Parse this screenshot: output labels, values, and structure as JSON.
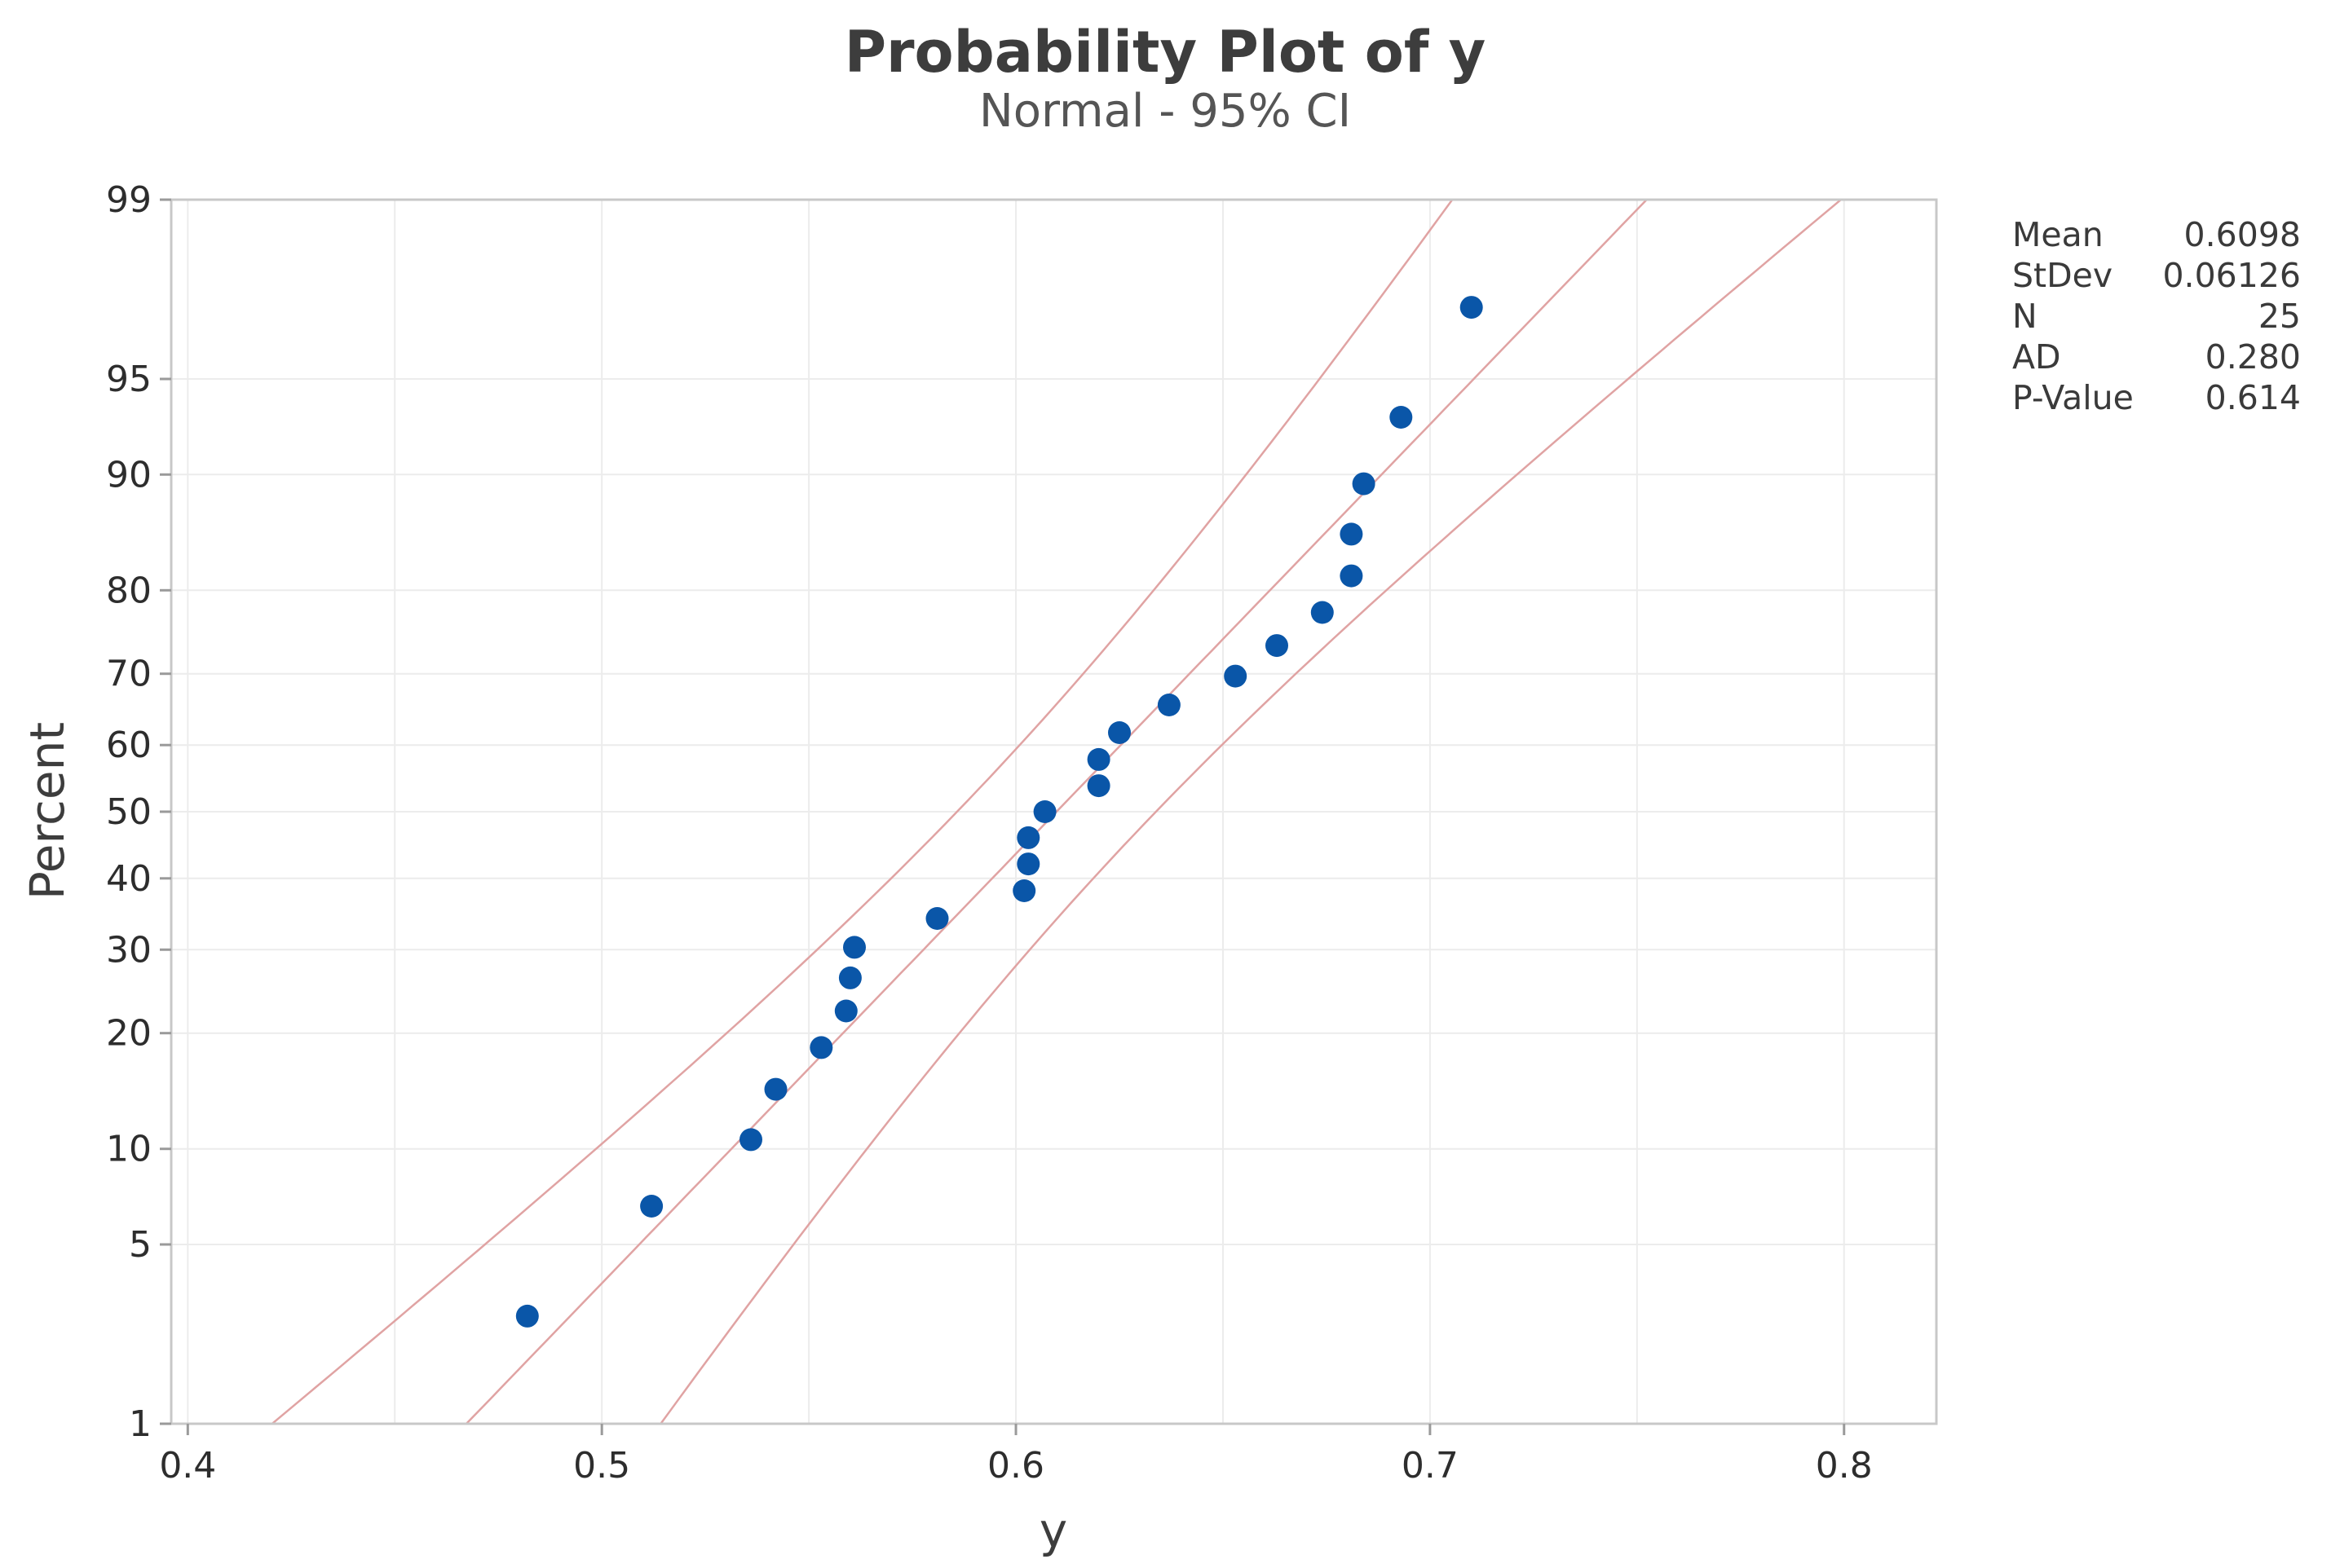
{
  "chart_data": {
    "type": "scatter",
    "title": "Probability Plot of y",
    "subtitle": "Normal - 95% CI",
    "xlabel": "y",
    "ylabel": "Percent",
    "xlim": [
      0.396,
      0.8223
    ],
    "ylim_percent": [
      1,
      99
    ],
    "y_scale": "normal-probability",
    "grid": true,
    "x_ticks": [
      0.4,
      0.5,
      0.6,
      0.7,
      0.8
    ],
    "x_tick_labels": [
      "0.4",
      "0.5",
      "0.6",
      "0.7",
      "0.8"
    ],
    "y_ticks": [
      1,
      5,
      10,
      20,
      30,
      40,
      50,
      60,
      70,
      80,
      90,
      95,
      99
    ],
    "y_tick_labels": [
      "1",
      "5",
      "10",
      "20",
      "30",
      "40",
      "50",
      "60",
      "70",
      "80",
      "90",
      "95",
      "99"
    ],
    "points": {
      "x": [
        0.482,
        0.512,
        0.536,
        0.542,
        0.553,
        0.559,
        0.56,
        0.561,
        0.581,
        0.602,
        0.603,
        0.603,
        0.607,
        0.62,
        0.62,
        0.625,
        0.637,
        0.653,
        0.663,
        0.674,
        0.681,
        0.681,
        0.684,
        0.693,
        0.71
      ],
      "y": [
        2.76,
        6.69,
        10.63,
        14.57,
        18.5,
        22.44,
        26.38,
        30.31,
        34.25,
        38.19,
        42.13,
        46.06,
        50.0,
        53.94,
        57.87,
        61.81,
        65.75,
        69.69,
        73.62,
        77.56,
        81.5,
        85.43,
        89.37,
        93.31,
        97.24
      ]
    },
    "fit_line": {
      "mean": 0.6098,
      "stdev": 0.06126,
      "color": "#e0a3a3"
    },
    "confidence_band": {
      "level": "95%",
      "n": 25,
      "color": "#e0a3a3"
    },
    "point_color": "#0a56a8",
    "legend_placement": "right"
  },
  "stats": [
    {
      "label": "Mean",
      "value": "0.6098"
    },
    {
      "label": "StDev",
      "value": "0.06126"
    },
    {
      "label": "N",
      "value": "25"
    },
    {
      "label": "AD",
      "value": "0.280"
    },
    {
      "label": "P-Value",
      "value": "0.614"
    }
  ]
}
